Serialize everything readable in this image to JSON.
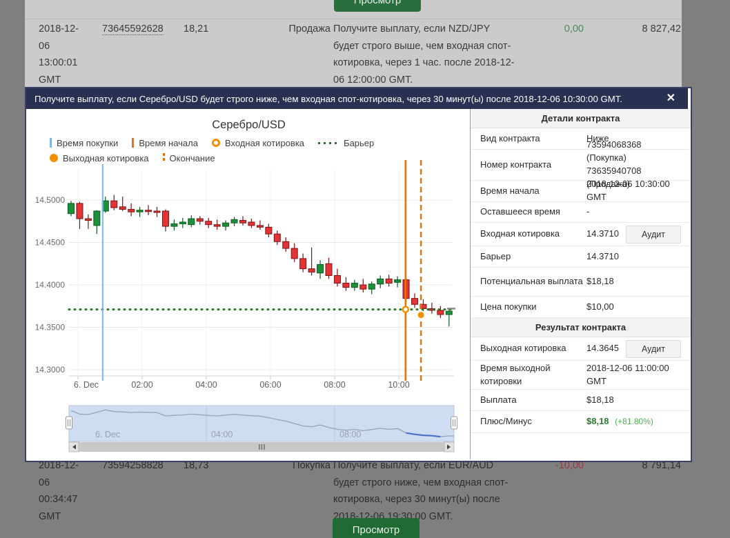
{
  "background": {
    "view_button_label": "Просмотр",
    "rows": [
      {
        "date_lines": [
          "2018-12-",
          "06",
          "13:00:01",
          "GMT"
        ],
        "ref": "73645592628",
        "buy_price": "18,21",
        "action": "Продажа",
        "description": "Получите выплату, если NZD/JPY будет строго выше, чем входная спот-котировка, через 1 час. после 2018-12-06 12:00:00 GMT.",
        "profit_loss": "0,00",
        "profit_color": "#4a8a57",
        "balance": "8 827,42"
      },
      {
        "date_lines": [
          "2018-12-",
          "06",
          "00:34:47",
          "GMT"
        ],
        "ref": "73594258828",
        "buy_price": "18,73",
        "action": "Покупка",
        "description": "Получите выплату, если EUR/AUD будет строго ниже, чем входная спот-котировка, через 30 минут(ы) после 2018-12-06 19:30:00 GMT.",
        "profit_loss": "-10,00",
        "profit_color": "#953843",
        "balance": "8 791,14"
      }
    ]
  },
  "modal": {
    "title": "Получите выплату, если Серебро/USD будет строго ниже, чем входная спот-котировка, через 30 минут(ы) после 2018-12-06 10:30:00 GMT.",
    "close_icon": "✕"
  },
  "chart_data": {
    "type": "candlestick",
    "title": "Серебро/USD",
    "interval_minutes": 15,
    "x_ticks": [
      "6. Dec",
      "02:00",
      "04:00",
      "06:00",
      "08:00",
      "10:00"
    ],
    "y_tick_labels": [
      "14.5000",
      "14.4500",
      "14.4000",
      "14.3500",
      "14.3000"
    ],
    "y_ticks": [
      14.5,
      14.45,
      14.4,
      14.35,
      14.3
    ],
    "ylim": [
      14.293,
      14.537
    ],
    "grid": true,
    "barrier": 14.371,
    "entry_spot": 14.371,
    "exit_spot": 14.3645,
    "last_price": 14.372,
    "marker_lines": {
      "buy_hour": 0.77,
      "start_hour": 10.21,
      "end_hour": 10.69
    },
    "legend": [
      {
        "label": "Время покупки",
        "type": "vline-solid",
        "color": "#7cb5ec"
      },
      {
        "label": "Время начала",
        "type": "vline-solid",
        "color": "#e8730c"
      },
      {
        "label": "Входная котировка",
        "type": "marker-hollow",
        "color": "#f09000"
      },
      {
        "label": "Барьер",
        "type": "dotted-line",
        "color": "#1f7a1f"
      },
      {
        "label": "Выходная котировка",
        "type": "marker-solid",
        "color": "#f09000"
      },
      {
        "label": "Окончание",
        "type": "vline-dashed",
        "color": "#e8730c"
      }
    ],
    "legend_rows": [
      [
        0,
        1,
        2,
        3
      ],
      [
        4,
        5
      ]
    ],
    "colors": {
      "up": "#1e8f3a",
      "up_border": "#0b5c1e",
      "down": "#e23434",
      "down_border": "#7c1414"
    },
    "navigator_labels": [
      "6. Dec",
      "04:00",
      "08:00"
    ],
    "candles": [
      [
        14.484,
        14.499,
        14.481,
        14.496
      ],
      [
        14.496,
        14.498,
        14.466,
        14.478
      ],
      [
        14.478,
        14.483,
        14.466,
        14.476
      ],
      [
        14.47,
        14.488,
        14.46,
        14.487
      ],
      [
        14.487,
        14.504,
        14.485,
        14.499
      ],
      [
        14.499,
        14.506,
        14.488,
        14.491
      ],
      [
        14.492,
        14.504,
        14.487,
        14.489
      ],
      [
        14.489,
        14.496,
        14.481,
        14.486
      ],
      [
        14.486,
        14.492,
        14.48,
        14.488
      ],
      [
        14.488,
        14.494,
        14.482,
        14.487
      ],
      [
        14.487,
        14.492,
        14.48,
        14.486
      ],
      [
        14.487,
        14.489,
        14.463,
        14.469
      ],
      [
        14.469,
        14.477,
        14.464,
        14.472
      ],
      [
        14.472,
        14.479,
        14.467,
        14.474
      ],
      [
        14.471,
        14.482,
        14.468,
        14.478
      ],
      [
        14.478,
        14.481,
        14.471,
        14.475
      ],
      [
        14.475,
        14.479,
        14.467,
        14.471
      ],
      [
        14.471,
        14.477,
        14.465,
        14.469
      ],
      [
        14.469,
        14.476,
        14.464,
        14.473
      ],
      [
        14.473,
        14.48,
        14.469,
        14.477
      ],
      [
        14.476,
        14.481,
        14.47,
        14.473
      ],
      [
        14.474,
        14.478,
        14.467,
        14.47
      ],
      [
        14.47,
        14.476,
        14.465,
        14.468
      ],
      [
        14.468,
        14.472,
        14.456,
        14.46
      ],
      [
        14.46,
        14.464,
        14.447,
        14.451
      ],
      [
        14.451,
        14.456,
        14.439,
        14.443
      ],
      [
        14.443,
        14.449,
        14.427,
        14.431
      ],
      [
        14.431,
        14.437,
        14.415,
        14.419
      ],
      [
        14.419,
        14.444,
        14.411,
        14.415
      ],
      [
        14.414,
        14.429,
        14.407,
        14.424
      ],
      [
        14.425,
        14.432,
        14.407,
        14.411
      ],
      [
        14.411,
        14.419,
        14.398,
        14.402
      ],
      [
        14.402,
        14.409,
        14.393,
        14.397
      ],
      [
        14.397,
        14.406,
        14.393,
        14.402
      ],
      [
        14.4,
        14.407,
        14.391,
        14.395
      ],
      [
        14.395,
        14.404,
        14.389,
        14.401
      ],
      [
        14.401,
        14.411,
        14.396,
        14.407
      ],
      [
        14.407,
        14.412,
        14.398,
        14.402
      ],
      [
        14.403,
        14.41,
        14.397,
        14.406
      ],
      [
        14.406,
        14.409,
        14.379,
        14.384
      ],
      [
        14.384,
        14.39,
        14.373,
        14.377
      ],
      [
        14.377,
        14.383,
        14.369,
        14.372
      ],
      [
        14.372,
        14.379,
        14.366,
        14.37
      ],
      [
        14.37,
        14.375,
        14.361,
        14.365
      ],
      [
        14.365,
        14.373,
        14.351,
        14.369
      ]
    ]
  },
  "panel": {
    "details_header": "Детали контракта",
    "result_header": "Результат контракта",
    "audit_label": "Аудит",
    "rows_details": [
      {
        "label": "Вид контракта",
        "value": "Ниже"
      },
      {
        "label": "Номер контракта",
        "value": "73594068368 (Покупка)",
        "value2": "73635940708 (Продажа)"
      },
      {
        "label": "Время начала",
        "value": "2018-12-06 10:30:00 GMT"
      },
      {
        "label": "Оставшееся время",
        "value": "-"
      },
      {
        "label": "Входная котировка",
        "value": "14.3710"
      },
      {
        "label": "Барьер",
        "value": "14.3710"
      },
      {
        "label": "Потенциальная выплата",
        "value": "$18,18"
      },
      {
        "label": "Цена покупки",
        "value": "$10,00"
      }
    ],
    "rows_result": [
      {
        "label": "Выходная котировка",
        "value": "14.3645"
      },
      {
        "label": "Время выходной котировки",
        "value": "2018-12-06 11:00:00 GMT"
      },
      {
        "label": "Выплата",
        "value": "$18,18"
      },
      {
        "label": "Плюс/Минус",
        "value": "$8,18",
        "value_extra": "(+81.80%)",
        "value_color": "#2e7d32",
        "extra_color": "#4caf50"
      }
    ]
  }
}
